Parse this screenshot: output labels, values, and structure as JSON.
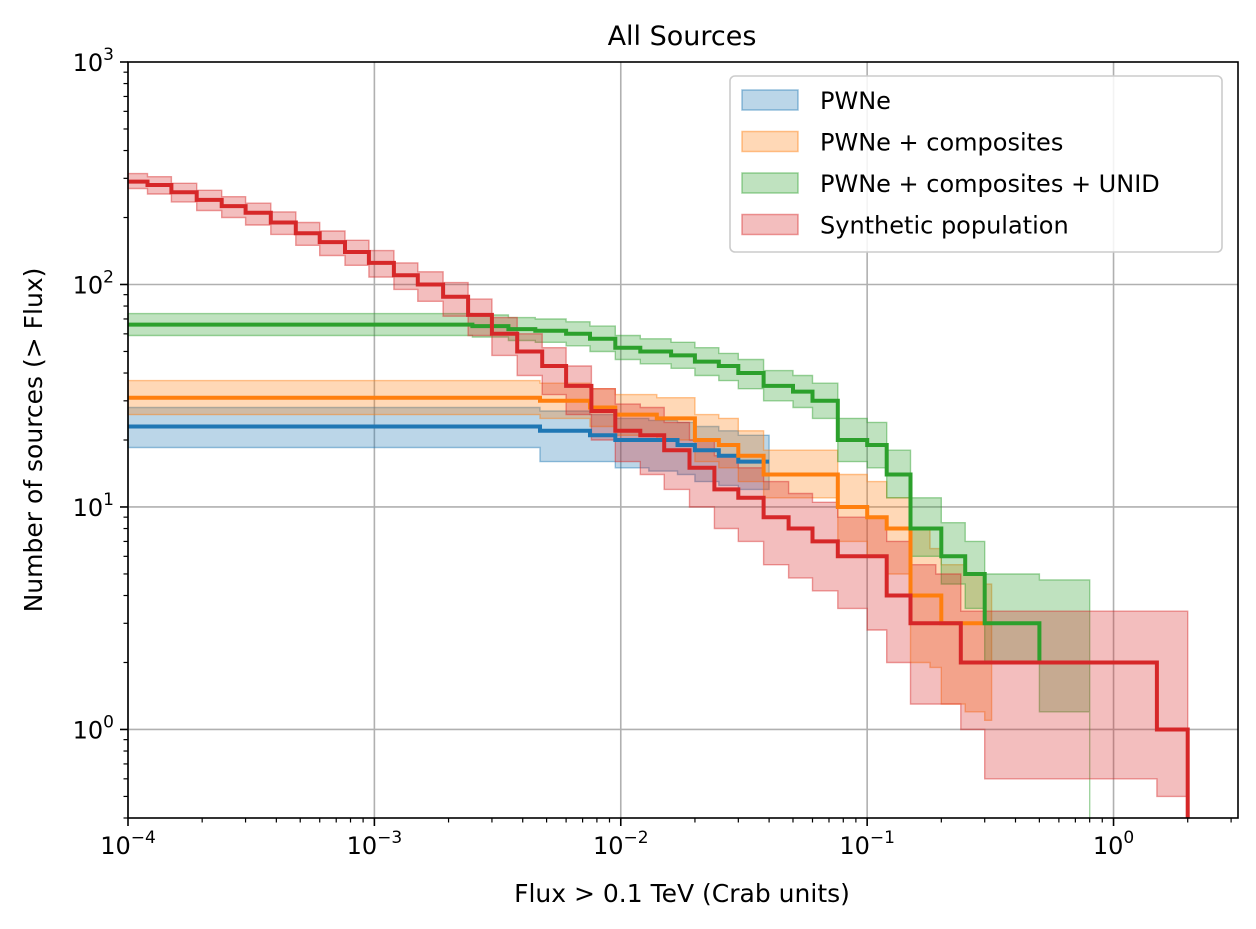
{
  "chart_data": {
    "type": "line",
    "step": true,
    "title": "All Sources",
    "xlabel": "Flux > 0.1 TeV (Crab units)",
    "ylabel": "Number of sources (> Flux)",
    "xscale": "log",
    "yscale": "log",
    "xlim": [
      0.0001,
      3.2
    ],
    "ylim": [
      0.4,
      1000
    ],
    "grid": true,
    "legend_position": "top-right",
    "x_ticks": [
      {
        "value": 0.0001,
        "base": "10",
        "exp": "−4"
      },
      {
        "value": 0.001,
        "base": "10",
        "exp": "−3"
      },
      {
        "value": 0.01,
        "base": "10",
        "exp": "−2"
      },
      {
        "value": 0.1,
        "base": "10",
        "exp": "−1"
      },
      {
        "value": 1,
        "base": "10",
        "exp": "0"
      }
    ],
    "y_ticks": [
      {
        "value": 1,
        "base": "10",
        "exp": "0"
      },
      {
        "value": 10,
        "base": "10",
        "exp": "1"
      },
      {
        "value": 100,
        "base": "10",
        "exp": "2"
      },
      {
        "value": 1000,
        "base": "10",
        "exp": "3"
      }
    ],
    "series": [
      {
        "name": "PWNe",
        "color": "#1f77b4",
        "x": [
          0.0001,
          0.0047,
          0.0075,
          0.0095,
          0.013,
          0.017,
          0.02,
          0.025,
          0.03,
          0.038
        ],
        "y": [
          23,
          22,
          21,
          20,
          20,
          19,
          18,
          17,
          16,
          16
        ],
        "lower": [
          18.5,
          16,
          16,
          15,
          14.5,
          14,
          13,
          12.5,
          12,
          12
        ],
        "upper": [
          28,
          27,
          26,
          25,
          24.5,
          24,
          23,
          22,
          21,
          21
        ]
      },
      {
        "name": "PWNe + composites",
        "color": "#ff7f0e",
        "x": [
          0.0001,
          0.0047,
          0.0075,
          0.0095,
          0.014,
          0.02,
          0.025,
          0.03,
          0.038,
          0.076,
          0.1,
          0.12,
          0.15,
          0.18,
          0.2,
          0.25,
          0.3
        ],
        "y": [
          31,
          30,
          28,
          26,
          25,
          20,
          19,
          17,
          14,
          10,
          9,
          8,
          4,
          4,
          3,
          3,
          3
        ],
        "lower": [
          26,
          25,
          23,
          21,
          20,
          16,
          15,
          13,
          11,
          7,
          6,
          5,
          2,
          1.9,
          1.3,
          1.2,
          1.1
        ],
        "upper": [
          37,
          36,
          34,
          32,
          31,
          26,
          25,
          22,
          18,
          14,
          13,
          11,
          8,
          6.5,
          5.5,
          5,
          4.5
        ]
      },
      {
        "name": "PWNe + composites + UNID",
        "color": "#2ca02c",
        "x": [
          0.0001,
          0.0025,
          0.0035,
          0.0045,
          0.006,
          0.0075,
          0.0095,
          0.012,
          0.016,
          0.02,
          0.025,
          0.03,
          0.038,
          0.05,
          0.06,
          0.076,
          0.1,
          0.12,
          0.15,
          0.2,
          0.25,
          0.3,
          0.5,
          0.8
        ],
        "y": [
          66,
          65,
          63,
          62,
          60,
          57,
          52,
          50,
          48,
          45,
          43,
          40,
          35,
          33,
          30,
          20,
          19,
          14,
          8,
          6,
          5,
          3,
          2,
          2
        ],
        "lower": [
          59,
          58,
          56,
          55,
          53,
          50,
          46,
          44,
          42,
          39,
          37,
          34,
          30,
          28,
          25,
          16,
          15,
          11,
          6,
          4.5,
          3.5,
          2,
          1.2,
          0.4
        ],
        "upper": [
          74,
          73,
          71,
          70,
          68,
          65,
          59,
          57,
          55,
          52,
          49,
          46,
          41,
          39,
          36,
          25,
          24,
          18,
          11,
          8.5,
          7,
          5,
          4.7,
          3.4
        ]
      },
      {
        "name": "Synthetic population",
        "color": "#d62728",
        "x": [
          0.0001,
          0.00012,
          0.00015,
          0.00019,
          0.00024,
          0.0003,
          0.00038,
          0.00048,
          0.0006,
          0.00076,
          0.00095,
          0.0012,
          0.0015,
          0.0019,
          0.0024,
          0.003,
          0.0038,
          0.0048,
          0.006,
          0.0076,
          0.0095,
          0.012,
          0.015,
          0.019,
          0.024,
          0.03,
          0.038,
          0.048,
          0.06,
          0.076,
          0.1,
          0.12,
          0.15,
          0.19,
          0.24,
          0.3,
          1.5,
          2
        ],
        "y": [
          290,
          280,
          260,
          240,
          225,
          210,
          190,
          170,
          155,
          140,
          125,
          110,
          100,
          88,
          73,
          60,
          50,
          43,
          35,
          27,
          22,
          21,
          18,
          15,
          12,
          11,
          9,
          8,
          7,
          6,
          6,
          4,
          3,
          3,
          2,
          2,
          1,
          0.4
        ],
        "lower": [
          270,
          255,
          235,
          215,
          200,
          185,
          168,
          150,
          135,
          122,
          108,
          95,
          84,
          72,
          59,
          48,
          39,
          32,
          26,
          20,
          16,
          14,
          12,
          10,
          8,
          7,
          5.5,
          4.8,
          4.2,
          3.5,
          2.8,
          2,
          1.3,
          1.3,
          1,
          0.6,
          0.5,
          0.4
        ],
        "upper": [
          315,
          305,
          285,
          265,
          248,
          232,
          212,
          190,
          174,
          158,
          142,
          125,
          114,
          102,
          86,
          71,
          60,
          52,
          43,
          34,
          29,
          28,
          24,
          20,
          17,
          15,
          13,
          11.5,
          10.5,
          9,
          9,
          7,
          5.5,
          5,
          3.4,
          3.4,
          3.4,
          2
        ]
      }
    ]
  }
}
